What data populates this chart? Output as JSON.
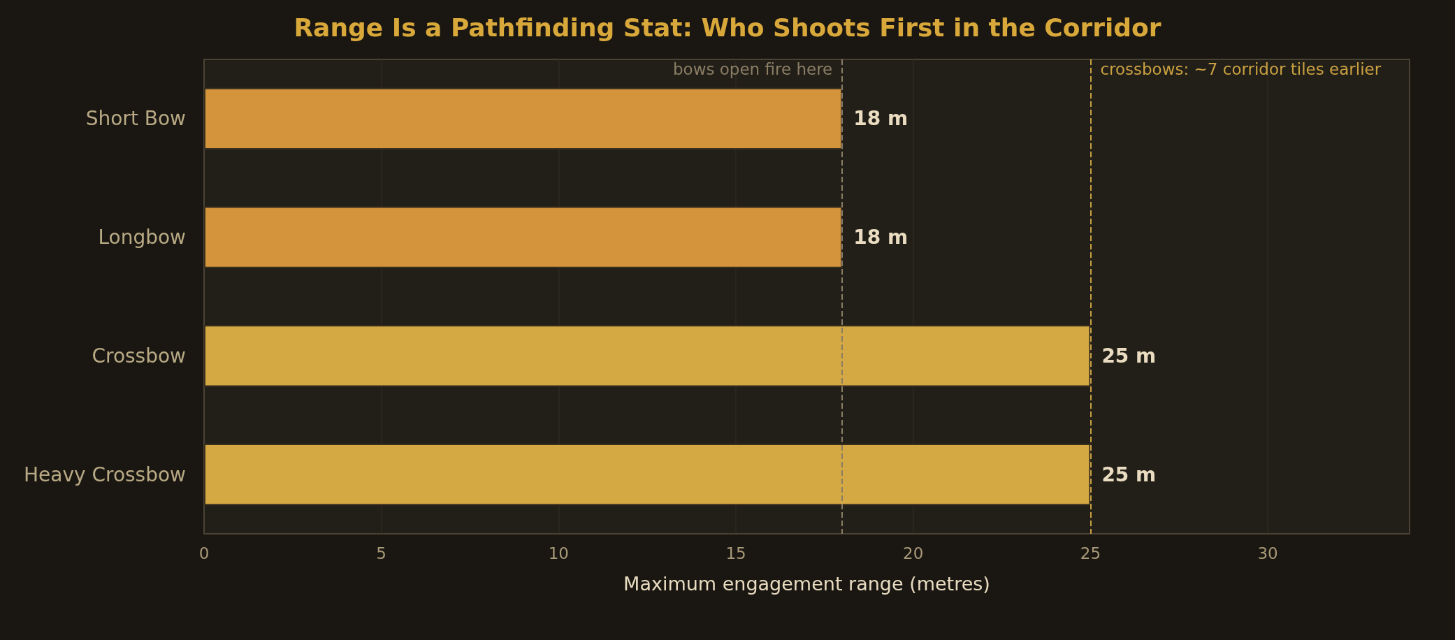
{
  "chart_data": {
    "type": "bar",
    "orientation": "horizontal",
    "title": "Range Is a Pathfinding Stat: Who Shoots First in the Corridor",
    "xlabel": "Maximum engagement range (metres)",
    "categories": [
      "Short Bow",
      "Longbow",
      "Crossbow",
      "Heavy Crossbow"
    ],
    "values": [
      18,
      18,
      25,
      25
    ],
    "colors": [
      "#d4943c",
      "#d4943c",
      "#d4a843",
      "#d4a843"
    ],
    "value_labels": [
      "18 m",
      "18 m",
      "25 m",
      "25 m"
    ],
    "xlim": [
      0,
      34
    ],
    "xticks": [
      0,
      5,
      10,
      15,
      20,
      25,
      30
    ],
    "grid": "x",
    "ref_lines": [
      {
        "axis": "x",
        "value": 18,
        "label": "bows open fire here",
        "color": "#8a7d64",
        "line_style": "dashed"
      },
      {
        "axis": "x",
        "value": 25,
        "label": "crossbows: ~7 corridor tiles earlier",
        "color": "#c9a040",
        "line_style": "dashed"
      }
    ]
  }
}
